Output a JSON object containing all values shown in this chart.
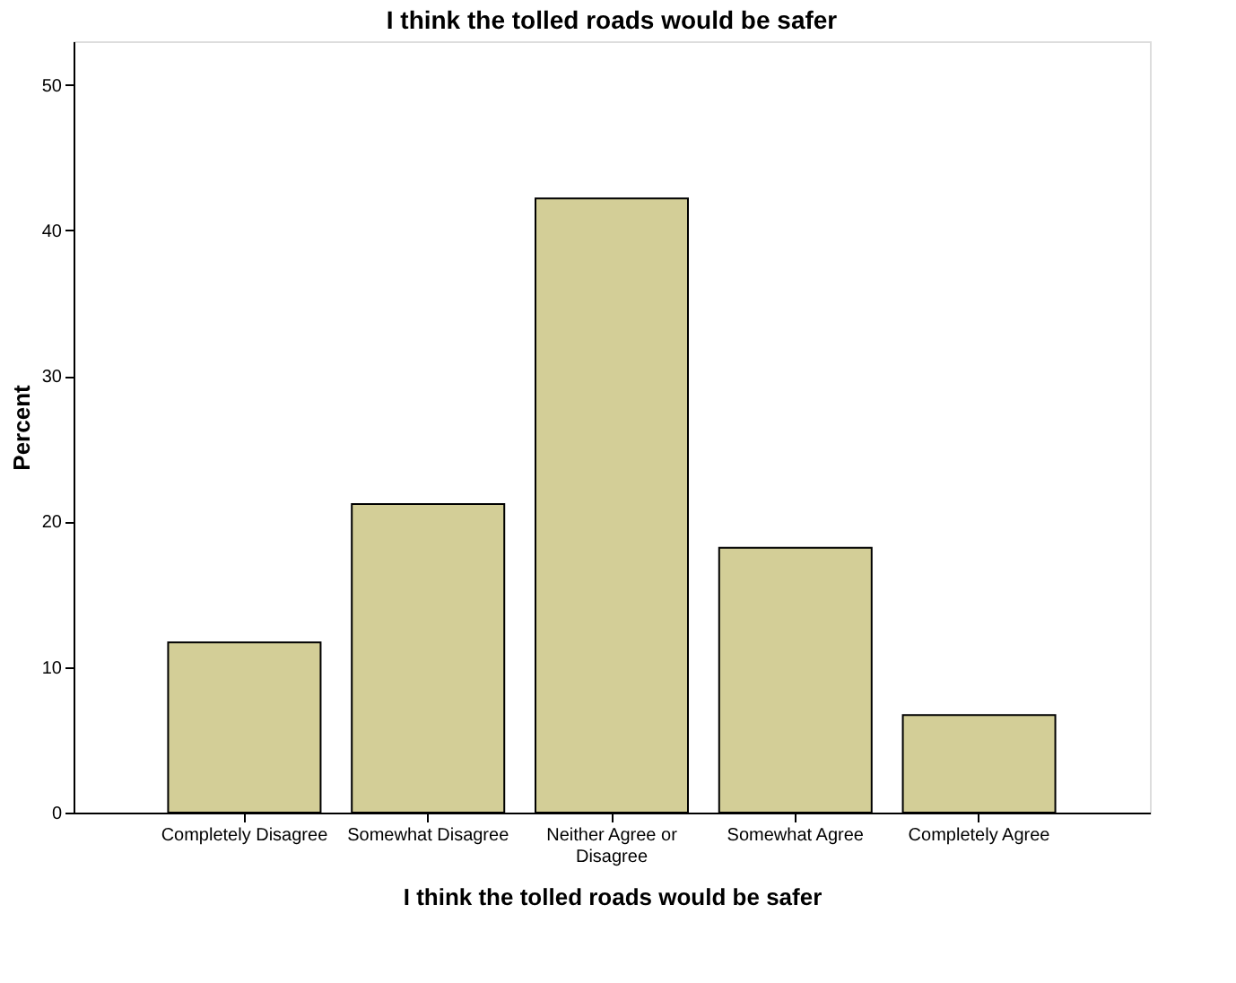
{
  "chart_data": {
    "type": "bar",
    "title": "I think the tolled roads would be safer",
    "xlabel": "I think the tolled roads would be safer",
    "ylabel": "Percent",
    "categories": [
      "Completely Disagree",
      "Somewhat Disagree",
      "Neither Agree or Disagree",
      "Somewhat Agree",
      "Completely Agree"
    ],
    "values": [
      11.7,
      21.2,
      42.2,
      18.2,
      6.7
    ],
    "color": "#d3ce97",
    "ylim": [
      0,
      53
    ],
    "yticks": [
      0,
      10,
      20,
      30,
      40,
      50
    ],
    "grid": false
  }
}
